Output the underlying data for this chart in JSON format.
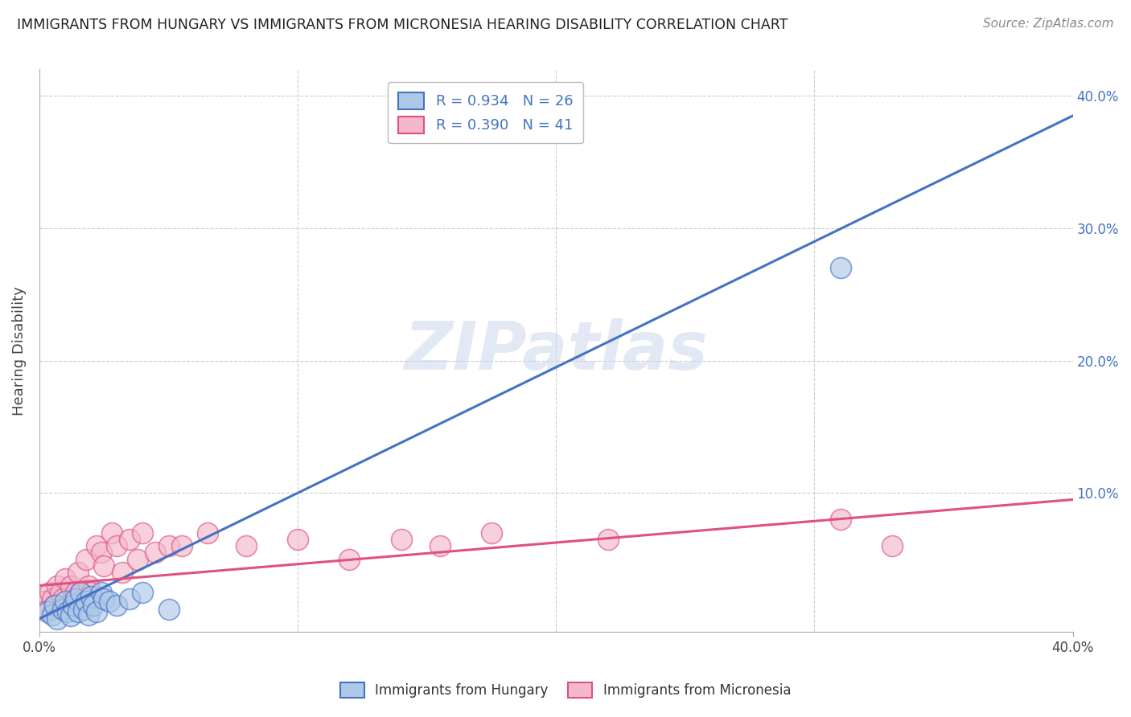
{
  "title": "IMMIGRANTS FROM HUNGARY VS IMMIGRANTS FROM MICRONESIA HEARING DISABILITY CORRELATION CHART",
  "source": "Source: ZipAtlas.com",
  "ylabel": "Hearing Disability",
  "xlim": [
    0.0,
    0.4
  ],
  "ylim": [
    -0.005,
    0.42
  ],
  "yticks_right": [
    0.1,
    0.2,
    0.3,
    0.4
  ],
  "ytick_labels_right": [
    "10.0%",
    "20.0%",
    "30.0%",
    "40.0%"
  ],
  "blue_color": "#aec8e8",
  "pink_color": "#f4b8cb",
  "blue_line_color": "#4472c4",
  "pink_line_color": "#e05080",
  "legend_R_blue": "R = 0.934",
  "legend_N_blue": "N = 26",
  "legend_R_pink": "R = 0.390",
  "legend_N_pink": "N = 41",
  "watermark": "ZIPatlas",
  "blue_scatter_x": [
    0.003,
    0.005,
    0.006,
    0.007,
    0.009,
    0.01,
    0.011,
    0.012,
    0.013,
    0.014,
    0.015,
    0.016,
    0.017,
    0.018,
    0.019,
    0.02,
    0.021,
    0.022,
    0.024,
    0.025,
    0.027,
    0.03,
    0.035,
    0.04,
    0.05,
    0.31
  ],
  "blue_scatter_y": [
    0.01,
    0.008,
    0.015,
    0.005,
    0.012,
    0.018,
    0.01,
    0.007,
    0.015,
    0.02,
    0.01,
    0.025,
    0.012,
    0.018,
    0.008,
    0.022,
    0.015,
    0.01,
    0.025,
    0.02,
    0.018,
    0.015,
    0.02,
    0.025,
    0.012,
    0.27
  ],
  "pink_scatter_x": [
    0.002,
    0.003,
    0.004,
    0.005,
    0.006,
    0.007,
    0.008,
    0.009,
    0.01,
    0.011,
    0.012,
    0.013,
    0.014,
    0.015,
    0.016,
    0.017,
    0.018,
    0.019,
    0.02,
    0.022,
    0.024,
    0.025,
    0.028,
    0.03,
    0.032,
    0.035,
    0.038,
    0.04,
    0.045,
    0.05,
    0.055,
    0.065,
    0.08,
    0.1,
    0.12,
    0.14,
    0.155,
    0.175,
    0.22,
    0.31,
    0.33
  ],
  "pink_scatter_y": [
    0.018,
    0.012,
    0.025,
    0.02,
    0.015,
    0.03,
    0.025,
    0.02,
    0.035,
    0.015,
    0.03,
    0.018,
    0.025,
    0.04,
    0.025,
    0.02,
    0.05,
    0.03,
    0.025,
    0.06,
    0.055,
    0.045,
    0.07,
    0.06,
    0.04,
    0.065,
    0.05,
    0.07,
    0.055,
    0.06,
    0.06,
    0.07,
    0.06,
    0.065,
    0.05,
    0.065,
    0.06,
    0.07,
    0.065,
    0.08,
    0.06
  ],
  "blue_line_x": [
    0.0,
    0.4
  ],
  "blue_line_y": [
    0.005,
    0.385
  ],
  "pink_line_x": [
    0.0,
    0.4
  ],
  "pink_line_y": [
    0.03,
    0.095
  ]
}
